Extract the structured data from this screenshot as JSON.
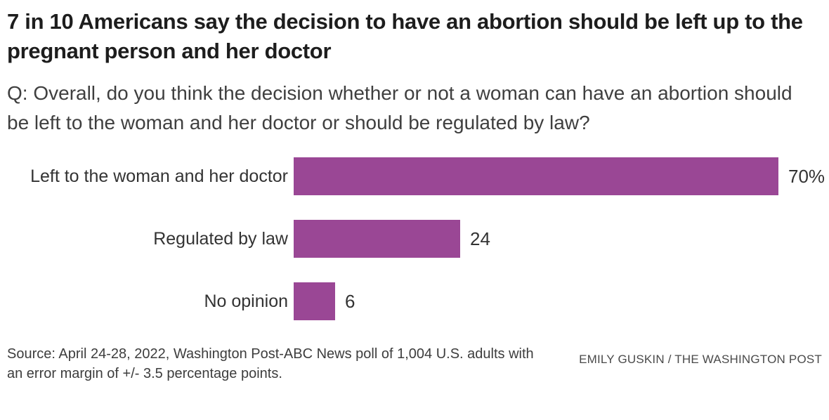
{
  "header": {
    "title": "7 in 10 Americans say the decision to have an abortion should be left up to the pregnant person and her doctor",
    "question": "Q: Overall, do you think the decision whether or not a woman can have an abortion should be left to the woman and her doctor or should be regulated by law?"
  },
  "chart_data": {
    "type": "bar",
    "orientation": "horizontal",
    "title": "7 in 10 Americans say the decision to have an abortion should be left up to the pregnant person and her doctor",
    "subtitle": "Q: Overall, do you think the decision whether or not a woman can have an abortion should be left to the woman and her doctor or should be regulated by law?",
    "categories": [
      "Left to the woman and her doctor",
      "Regulated by law",
      "No opinion"
    ],
    "values": [
      70,
      24,
      6
    ],
    "value_labels": [
      "70%",
      "24",
      "6"
    ],
    "unit": "percent",
    "xlim": [
      0,
      70
    ],
    "bar_color": "#9a4795",
    "grid": false,
    "legend": false,
    "axis_ticks": false
  },
  "footer": {
    "source": "Source: April 24-28, 2022, Washington Post-ABC News poll of 1,004 U.S. adults with an error margin of +/- 3.5 percentage points.",
    "credit": "EMILY GUSKIN / THE WASHINGTON POST"
  }
}
